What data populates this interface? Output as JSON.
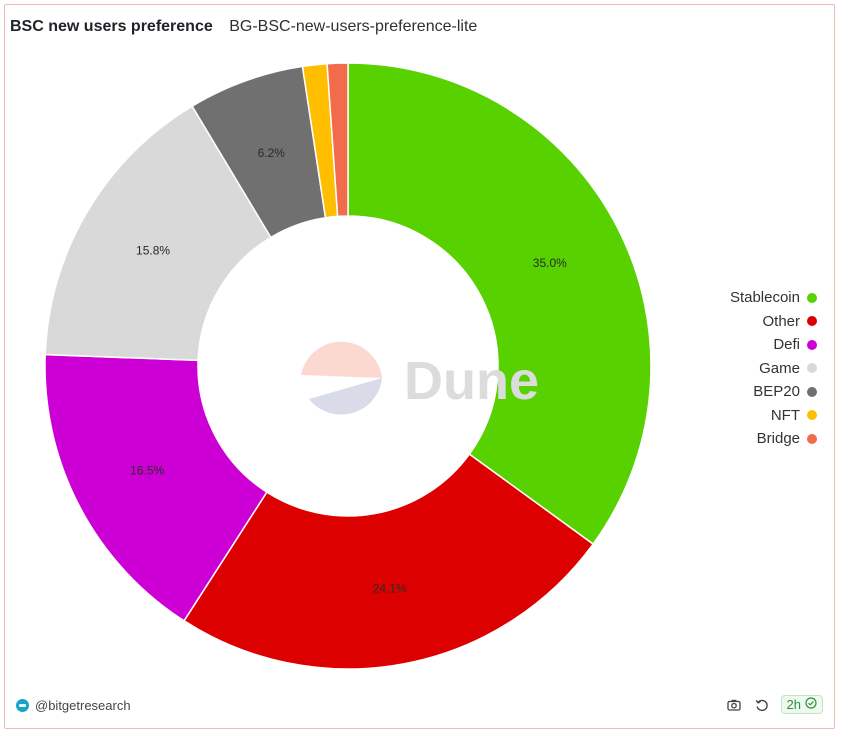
{
  "header": {
    "title": "BSC new users preference",
    "subtitle": "BG-BSC-new-users-preference-lite"
  },
  "watermark": {
    "text": "Dune"
  },
  "chart_data": {
    "type": "pie",
    "donut": true,
    "title": "BSC new users preference",
    "subtitle": "BG-BSC-new-users-preference-lite",
    "legend_placement": "right",
    "slices": [
      {
        "label": "Stablecoin",
        "value": 35.0,
        "display": "35.0%",
        "color": "#58d100"
      },
      {
        "label": "Other",
        "value": 24.1,
        "display": "24.1%",
        "color": "#dd0000"
      },
      {
        "label": "Defi",
        "value": 16.5,
        "display": "16.5%",
        "color": "#cc00d4"
      },
      {
        "label": "Game",
        "value": 15.8,
        "display": "15.8%",
        "color": "#d9d9d9"
      },
      {
        "label": "BEP20",
        "value": 6.2,
        "display": "6.2%",
        "color": "#707070"
      },
      {
        "label": "NFT",
        "value": 1.3,
        "display": "",
        "color": "#ffbf00"
      },
      {
        "label": "Bridge",
        "value": 1.1,
        "display": "",
        "color": "#f26b4a"
      }
    ]
  },
  "footer": {
    "author": "@bitgetresearch",
    "refresh_age": "2h",
    "icons": [
      "camera-icon",
      "refresh-icon",
      "check-circle-icon"
    ]
  }
}
